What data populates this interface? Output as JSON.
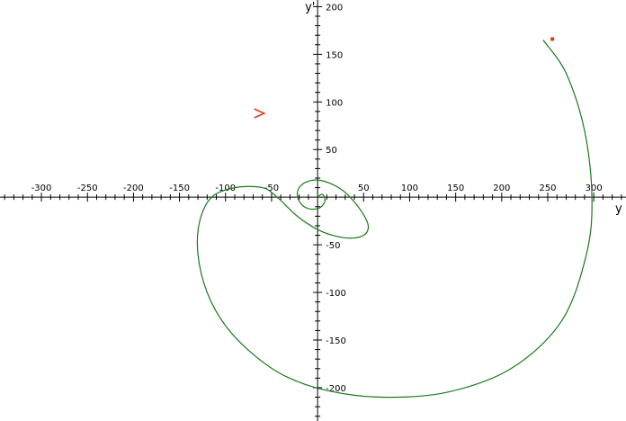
{
  "chart_data": {
    "type": "line",
    "title": "",
    "xlabel": "y",
    "ylabel": "y'",
    "xlim": [
      -345,
      335
    ],
    "ylim": [
      -235,
      207
    ],
    "grid": false,
    "x_ticks": [
      -300,
      -250,
      -200,
      -150,
      -100,
      -50,
      50,
      100,
      150,
      200,
      250,
      300
    ],
    "y_ticks": [
      200,
      150,
      100,
      50,
      -50,
      -100,
      -150,
      -200
    ],
    "colors": {
      "trajectory": "#1a7a1a",
      "start_marker": "#d84010",
      "direction_arrow": "#d84010",
      "axes": "#000000"
    },
    "series": [
      {
        "name": "",
        "x": [
          0,
          5,
          8,
          6,
          0,
          -10,
          -18,
          -22,
          -20,
          -12,
          0,
          15,
          30,
          44,
          53,
          55,
          50,
          38,
          20,
          0,
          -22,
          -44,
          -60,
          -90,
          -115,
          -128,
          -130,
          -120,
          -100,
          -70,
          -35,
          10,
          70,
          140,
          210,
          265,
          292,
          298,
          290,
          270,
          245
        ],
        "y": [
          0,
          3,
          -2,
          -8,
          -12,
          -12,
          -7,
          2,
          10,
          16,
          18,
          14,
          5,
          -10,
          -24,
          -33,
          -40,
          -43,
          -41,
          -34,
          -20,
          0,
          10,
          10,
          0,
          -25,
          -60,
          -100,
          -135,
          -165,
          -188,
          -203,
          -210,
          -205,
          -180,
          -130,
          -60,
          0,
          70,
          130,
          165
        ],
        "markers": [
          {
            "at": "end",
            "x": 255,
            "y": 166,
            "shape": "square"
          },
          {
            "at": "direction",
            "x": -63,
            "y": 88,
            "shape": "chevron"
          }
        ]
      }
    ]
  }
}
